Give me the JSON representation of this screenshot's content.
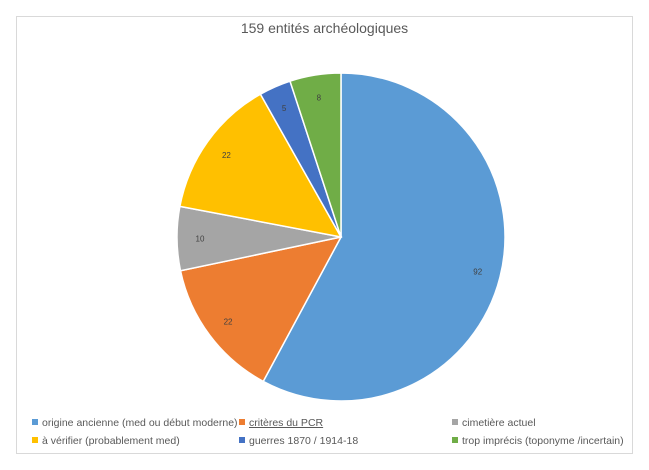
{
  "chart_data": {
    "type": "pie",
    "title": "159 entités archéologiques",
    "slices": [
      {
        "label": "origine ancienne (med ou début moderne)",
        "value": 92,
        "color": "#5b9bd5"
      },
      {
        "label": "critères du PCR",
        "value": 22,
        "color": "#ed7d31"
      },
      {
        "label": "cimetière actuel",
        "value": 10,
        "color": "#a5a5a5"
      },
      {
        "label": "à vérifier (probablement med)",
        "value": 22,
        "color": "#ffc000"
      },
      {
        "label": "guerres 1870 / 1914-18",
        "value": 5,
        "color": "#4472c4"
      },
      {
        "label": "trop imprécis (toponyme /incertain)",
        "value": 8,
        "color": "#70ad47"
      }
    ],
    "data_labels": [
      "92",
      "22",
      "10",
      "22",
      "5",
      "8"
    ],
    "legend_position": "bottom"
  }
}
